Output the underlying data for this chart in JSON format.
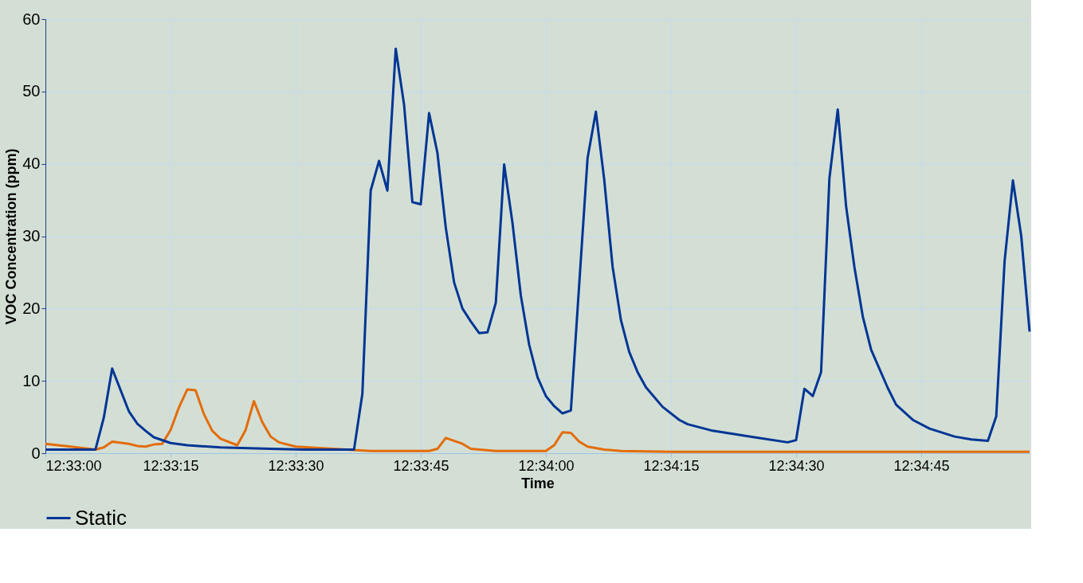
{
  "chart_data": {
    "type": "line",
    "xlabel": "Time",
    "ylabel": "VOC Concentration (ppm)",
    "xlim": [
      12.55,
      12.582778
    ],
    "ylim": [
      0,
      60
    ],
    "xticks": [
      {
        "value": 12.55,
        "label": "12:33:00"
      },
      {
        "value": 12.554167,
        "label": "12:33:15"
      },
      {
        "value": 12.558333,
        "label": "12:33:30"
      },
      {
        "value": 12.5625,
        "label": "12:33:45"
      },
      {
        "value": 12.566667,
        "label": "12:34:00"
      },
      {
        "value": 12.570833,
        "label": "12:34:15"
      },
      {
        "value": 12.575,
        "label": "12:34:30"
      },
      {
        "value": 12.579167,
        "label": "12:34:45"
      }
    ],
    "yticks": [
      0,
      10,
      20,
      30,
      40,
      50,
      60
    ],
    "grid": true,
    "legend": "bottom",
    "marker": "none",
    "line_style": "solid",
    "series": [
      {
        "color": "#e36c09",
        "x": [
          12.55,
          12.550833,
          12.551667,
          12.551944,
          12.552222,
          12.552778,
          12.553056,
          12.553333,
          12.553611,
          12.553889,
          12.554167,
          12.554444,
          12.554722,
          12.555,
          12.555278,
          12.555556,
          12.555833,
          12.556389,
          12.556667,
          12.556944,
          12.557222,
          12.5575,
          12.557778,
          12.558333,
          12.560833,
          12.562778,
          12.563056,
          12.563333,
          12.563889,
          12.564167,
          12.565,
          12.566667,
          12.566944,
          12.567222,
          12.5675,
          12.567778,
          12.568056,
          12.568611,
          12.569167,
          12.570833,
          12.582778
        ],
        "values": [
          1.3,
          0.9,
          0.5,
          0.8,
          1.6,
          1.3,
          1.0,
          0.9,
          1.2,
          1.3,
          3.2,
          6.3,
          8.8,
          8.7,
          5.4,
          3.1,
          2.0,
          1.1,
          3.2,
          7.2,
          4.3,
          2.3,
          1.5,
          0.9,
          0.3,
          0.3,
          0.6,
          2.1,
          1.3,
          0.6,
          0.3,
          0.3,
          1.1,
          2.9,
          2.8,
          1.6,
          0.9,
          0.5,
          0.3,
          0.2,
          0.2
        ]
      },
      {
        "name": "Static",
        "color": "#003594",
        "x": [
          12.55,
          12.551667,
          12.551944,
          12.552222,
          12.552778,
          12.553056,
          12.553333,
          12.553611,
          12.554167,
          12.554722,
          12.555833,
          12.5575,
          12.558611,
          12.560278,
          12.560556,
          12.560833,
          12.561111,
          12.561389,
          12.561667,
          12.561944,
          12.562222,
          12.5625,
          12.562778,
          12.563056,
          12.563333,
          12.563611,
          12.563889,
          12.564167,
          12.564444,
          12.564722,
          12.565,
          12.565278,
          12.565556,
          12.565833,
          12.566111,
          12.566389,
          12.566667,
          12.566944,
          12.567222,
          12.5675,
          12.568056,
          12.568333,
          12.568611,
          12.568889,
          12.569167,
          12.569444,
          12.569722,
          12.57,
          12.570556,
          12.571111,
          12.571389,
          12.572222,
          12.573611,
          12.574722,
          12.575,
          12.575278,
          12.575556,
          12.575833,
          12.576111,
          12.576389,
          12.576667,
          12.576944,
          12.577222,
          12.5775,
          12.578056,
          12.578333,
          12.578889,
          12.579444,
          12.580278,
          12.580833,
          12.581389,
          12.581667,
          12.581944,
          12.582222,
          12.5825,
          12.582778
        ],
        "values": [
          0.5,
          0.5,
          4.9,
          11.7,
          5.8,
          4.1,
          3.1,
          2.2,
          1.4,
          1.1,
          0.8,
          0.6,
          0.5,
          0.5,
          8.2,
          36.3,
          40.4,
          36.3,
          55.9,
          48.2,
          34.7,
          34.4,
          47.0,
          41.5,
          31.2,
          23.6,
          20.0,
          18.2,
          16.6,
          16.7,
          20.8,
          39.9,
          31.8,
          21.8,
          15.0,
          10.5,
          7.9,
          6.5,
          5.5,
          5.9,
          40.8,
          47.2,
          37.8,
          25.8,
          18.4,
          14.0,
          11.2,
          9.1,
          6.4,
          4.6,
          4.0,
          3.1,
          2.2,
          1.5,
          1.8,
          8.9,
          7.9,
          11.2,
          38.0,
          47.5,
          34.1,
          25.7,
          18.9,
          14.3,
          9.0,
          6.7,
          4.6,
          3.4,
          2.3,
          1.9,
          1.7,
          5.1,
          26.5,
          37.7,
          30.0,
          16.8
        ]
      }
    ]
  }
}
